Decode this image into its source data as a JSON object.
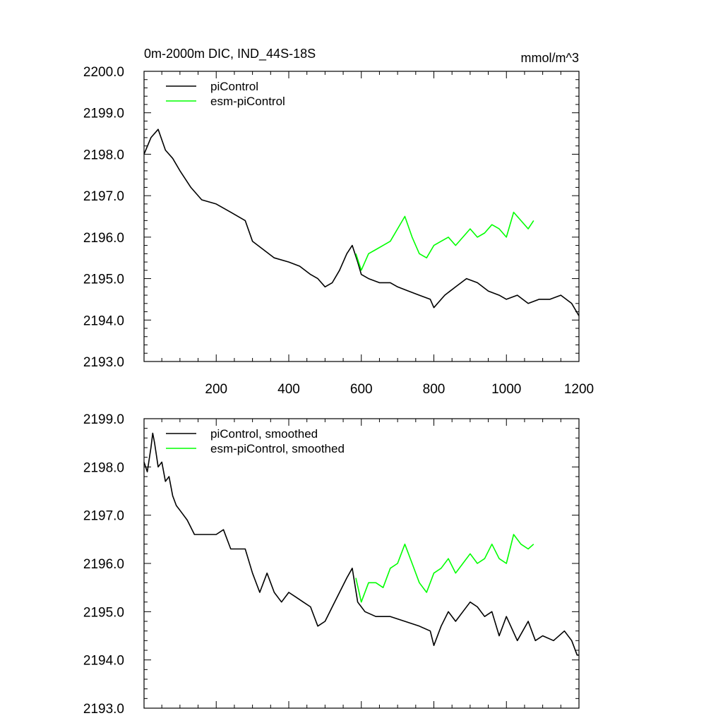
{
  "chart_data": [
    {
      "type": "line",
      "title": "0m-2000m DIC, IND_44S-18S",
      "units": "mmol/m^3",
      "xlabel": "",
      "ylabel": "",
      "xlim": [
        1,
        1200
      ],
      "ylim": [
        2193.0,
        2200.0
      ],
      "xticks": [
        200,
        400,
        600,
        800,
        1000,
        1200
      ],
      "yticks": [
        "2193.0",
        "2194.0",
        "2195.0",
        "2196.0",
        "2197.0",
        "2198.0",
        "2199.0",
        "2200.0"
      ],
      "legend_position": "top-left",
      "series": [
        {
          "name": "piControl",
          "color": "#000000",
          "x": [
            1,
            20,
            40,
            60,
            80,
            100,
            130,
            160,
            200,
            240,
            280,
            300,
            330,
            360,
            400,
            430,
            460,
            480,
            500,
            520,
            540,
            560,
            575,
            590,
            600,
            620,
            650,
            680,
            700,
            730,
            760,
            790,
            800,
            830,
            860,
            890,
            920,
            950,
            980,
            1000,
            1030,
            1060,
            1090,
            1120,
            1150,
            1180,
            1200
          ],
          "values": [
            2198.0,
            2198.4,
            2198.6,
            2198.1,
            2197.9,
            2197.6,
            2197.2,
            2196.9,
            2196.8,
            2196.6,
            2196.4,
            2195.9,
            2195.7,
            2195.5,
            2195.4,
            2195.3,
            2195.1,
            2195.0,
            2194.8,
            2194.9,
            2195.2,
            2195.6,
            2195.8,
            2195.4,
            2195.1,
            2195.0,
            2194.9,
            2194.9,
            2194.8,
            2194.7,
            2194.6,
            2194.5,
            2194.3,
            2194.6,
            2194.8,
            2195.0,
            2194.9,
            2194.7,
            2194.6,
            2194.5,
            2194.6,
            2194.4,
            2194.5,
            2194.5,
            2194.6,
            2194.4,
            2194.1
          ]
        },
        {
          "name": "esm-piControl",
          "color": "#00ff00",
          "x": [
            585,
            600,
            620,
            640,
            660,
            680,
            700,
            720,
            740,
            760,
            780,
            800,
            820,
            840,
            860,
            880,
            900,
            920,
            940,
            960,
            980,
            1000,
            1020,
            1040,
            1060,
            1075
          ],
          "values": [
            2195.6,
            2195.2,
            2195.6,
            2195.7,
            2195.8,
            2195.9,
            2196.2,
            2196.5,
            2196.0,
            2195.6,
            2195.5,
            2195.8,
            2195.9,
            2196.0,
            2195.8,
            2196.0,
            2196.2,
            2196.0,
            2196.1,
            2196.3,
            2196.2,
            2196.0,
            2196.6,
            2196.4,
            2196.2,
            2196.4
          ]
        }
      ]
    },
    {
      "type": "line",
      "title": "",
      "xlabel": "",
      "ylabel": "",
      "xlim": [
        1,
        1200
      ],
      "ylim": [
        2193.0,
        2199.0
      ],
      "xticks": [
        200,
        400,
        600,
        800,
        1000,
        1200
      ],
      "yticks": [
        "2193.0",
        "2194.0",
        "2195.0",
        "2196.0",
        "2197.0",
        "2198.0",
        "2199.0"
      ],
      "legend_position": "top-left",
      "series": [
        {
          "name": "piControl, smoothed",
          "color": "#000000",
          "x": [
            1,
            10,
            20,
            25,
            30,
            40,
            50,
            60,
            70,
            80,
            90,
            100,
            120,
            140,
            160,
            180,
            200,
            220,
            240,
            260,
            280,
            300,
            320,
            340,
            360,
            380,
            400,
            420,
            440,
            460,
            480,
            500,
            520,
            540,
            560,
            575,
            590,
            610,
            640,
            680,
            720,
            760,
            790,
            800,
            820,
            840,
            860,
            880,
            900,
            920,
            940,
            960,
            980,
            1000,
            1030,
            1060,
            1080,
            1100,
            1130,
            1160,
            1180,
            1195,
            1200
          ],
          "values": [
            2198.1,
            2197.9,
            2198.4,
            2198.7,
            2198.5,
            2198.0,
            2198.1,
            2197.7,
            2197.8,
            2197.4,
            2197.2,
            2197.1,
            2196.9,
            2196.6,
            2196.6,
            2196.6,
            2196.6,
            2196.7,
            2196.3,
            2196.3,
            2196.3,
            2195.8,
            2195.4,
            2195.8,
            2195.4,
            2195.2,
            2195.4,
            2195.3,
            2195.2,
            2195.1,
            2194.7,
            2194.8,
            2195.1,
            2195.4,
            2195.7,
            2195.9,
            2195.2,
            2195.0,
            2194.9,
            2194.9,
            2194.8,
            2194.7,
            2194.6,
            2194.3,
            2194.7,
            2195.0,
            2194.8,
            2195.0,
            2195.2,
            2195.1,
            2194.9,
            2195.0,
            2194.5,
            2194.9,
            2194.4,
            2194.8,
            2194.4,
            2194.5,
            2194.4,
            2194.6,
            2194.4,
            2194.1,
            2194.1
          ]
        },
        {
          "name": "esm-piControl, smoothed",
          "color": "#00ff00",
          "x": [
            585,
            600,
            620,
            640,
            660,
            680,
            700,
            720,
            740,
            760,
            780,
            800,
            820,
            840,
            860,
            880,
            900,
            920,
            940,
            960,
            980,
            1000,
            1020,
            1040,
            1060,
            1075
          ],
          "values": [
            2195.7,
            2195.2,
            2195.6,
            2195.6,
            2195.5,
            2195.9,
            2196.0,
            2196.4,
            2196.0,
            2195.6,
            2195.4,
            2195.8,
            2195.9,
            2196.1,
            2195.8,
            2196.0,
            2196.2,
            2196.0,
            2196.1,
            2196.4,
            2196.1,
            2196.0,
            2196.6,
            2196.4,
            2196.3,
            2196.4
          ]
        }
      ]
    }
  ]
}
